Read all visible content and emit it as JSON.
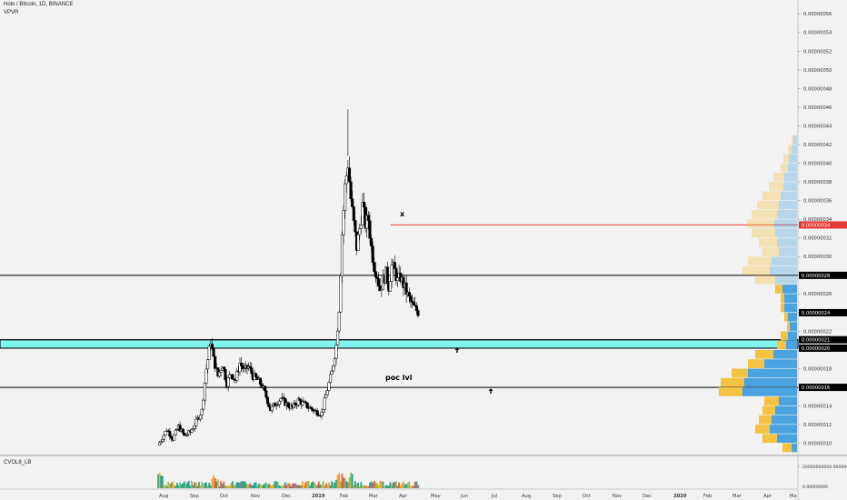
{
  "header": {
    "symbol_title": "Holo / Bitcoin, 1D, BINANCE",
    "indicator_name": "VPVR"
  },
  "volume_pane": {
    "label": "CVOL8_LB",
    "scale_top": "20000000000.00000000",
    "scale_zero": "0.00000000"
  },
  "annotations": {
    "x_marker": "x",
    "poc_label": "poc lvl"
  },
  "colors": {
    "background": "#f2f2f2",
    "candle_up": "#ffffff",
    "candle_down": "#000000",
    "horizontal_line": "#000000",
    "red_line": "#e53935",
    "zone_fill": "#7ff5ee",
    "vpvr_up": "#f5c242",
    "vpvr_down": "#4aa3e0",
    "vol_up": "#26a69a",
    "vol_down": "#ef5350"
  },
  "chart_data": {
    "type": "candlestick",
    "title": "Holo / Bitcoin, 1D, BINANCE",
    "x_axis_labels": [
      "Aug",
      "Sep",
      "Oct",
      "Nov",
      "Dec",
      "2019",
      "Feb",
      "Mar",
      "Apr",
      "May",
      "Jun",
      "Jul",
      "Aug",
      "Sep",
      "Oct",
      "Nov",
      "Dec",
      "2020",
      "Feb",
      "Mar",
      "Apr",
      "Ma"
    ],
    "y_ticks": [
      1e-07,
      1.2e-07,
      1.4e-07,
      1.6e-07,
      1.8e-07,
      2e-07,
      2.2e-07,
      2.4e-07,
      2.6e-07,
      2.8e-07,
      3e-07,
      3.2e-07,
      3.4e-07,
      3.6e-07,
      3.8e-07,
      4e-07,
      4.2e-07,
      4.4e-07,
      4.6e-07,
      4.8e-07,
      5e-07,
      5.2e-07,
      5.4e-07,
      5.6e-07
    ],
    "y_tick_labels": [
      "0.00000010",
      "0.00000012",
      "0.00000014",
      "0.00000016",
      "0.00000018",
      "0.00000020",
      "0.00000022",
      "0.00000024",
      "0.00000026",
      "0.00000028",
      "0.00000030",
      "0.00000032",
      "0.00000034",
      "0.00000036",
      "0.00000038",
      "0.00000040",
      "0.00000042",
      "0.00000044",
      "0.00000046",
      "0.00000048",
      "0.00000050",
      "0.00000052",
      "0.00000054",
      "0.00000056"
    ],
    "ylim": [
      8.8e-08,
      5.75e-07
    ],
    "price_tags": [
      {
        "value": 3.34e-07,
        "label": "0.00000034",
        "style": "red"
      },
      {
        "value": 2.8e-07,
        "label": "0.00000028",
        "style": "dark"
      },
      {
        "value": 2.4e-07,
        "label": "0.00000024",
        "style": "dark"
      },
      {
        "value": 2.11e-07,
        "label": "0.00000021",
        "style": "dark"
      },
      {
        "value": 2.02e-07,
        "label": "0.00000020",
        "style": "dark"
      },
      {
        "value": 1.6e-07,
        "label": "0.00000016",
        "style": "dark"
      }
    ],
    "horizontal_lines": [
      2.8e-07,
      2.11e-07,
      2.02e-07,
      1.6e-07
    ],
    "zone": [
      2.02e-07,
      2.11e-07
    ],
    "red_line": 3.34e-07,
    "close_path": [
      [
        0,
        9.8e-08
      ],
      [
        6,
        1.15e-07
      ],
      [
        10,
        1.05e-07
      ],
      [
        14,
        1.18e-07
      ],
      [
        18,
        1.08e-07
      ],
      [
        22,
        1.12e-07
      ],
      [
        26,
        1.23e-07
      ],
      [
        30,
        1.35e-07
      ],
      [
        33,
        1.8e-07
      ],
      [
        36,
        2.1e-07
      ],
      [
        38,
        1.9e-07
      ],
      [
        41,
        1.72e-07
      ],
      [
        44,
        1.85e-07
      ],
      [
        47,
        1.65e-07
      ],
      [
        50,
        1.75e-07
      ],
      [
        53,
        1.68e-07
      ],
      [
        56,
        1.86e-07
      ],
      [
        59,
        1.78e-07
      ],
      [
        62,
        1.82e-07
      ],
      [
        65,
        1.72e-07
      ],
      [
        68,
        1.68e-07
      ],
      [
        71,
        1.62e-07
      ],
      [
        74,
        1.5e-07
      ],
      [
        77,
        1.36e-07
      ],
      [
        80,
        1.42e-07
      ],
      [
        84,
        1.48e-07
      ],
      [
        88,
        1.42e-07
      ],
      [
        92,
        1.38e-07
      ],
      [
        96,
        1.46e-07
      ],
      [
        100,
        1.42e-07
      ],
      [
        104,
        1.38e-07
      ],
      [
        108,
        1.34e-07
      ],
      [
        112,
        1.32e-07
      ],
      [
        116,
        1.58e-07
      ],
      [
        119,
        1.76e-07
      ],
      [
        122,
        2.05e-07
      ],
      [
        124,
        2.45e-07
      ],
      [
        126,
        3.25e-07
      ],
      [
        128,
        3.75e-07
      ],
      [
        130,
        4e-07
      ],
      [
        132,
        3.62e-07
      ],
      [
        134,
        3.35e-07
      ],
      [
        136,
        3.1e-07
      ],
      [
        138,
        3.3e-07
      ],
      [
        140,
        3.55e-07
      ],
      [
        142,
        3.35e-07
      ],
      [
        144,
        3.4e-07
      ],
      [
        146,
        3.1e-07
      ],
      [
        148,
        2.9e-07
      ],
      [
        150,
        2.8e-07
      ],
      [
        152,
        2.65e-07
      ],
      [
        154,
        2.75e-07
      ],
      [
        156,
        2.82e-07
      ],
      [
        158,
        2.68e-07
      ],
      [
        160,
        2.9e-07
      ],
      [
        162,
        2.85e-07
      ],
      [
        164,
        2.74e-07
      ],
      [
        166,
        2.78e-07
      ],
      [
        168,
        2.7e-07
      ],
      [
        170,
        2.62e-07
      ],
      [
        172,
        2.55e-07
      ],
      [
        174,
        2.48e-07
      ],
      [
        176,
        2.44e-07
      ],
      [
        178,
        2.41e-07
      ]
    ],
    "vpvr_rows": [
      {
        "price": 4.25e-07,
        "up": 2,
        "down": 4
      },
      {
        "price": 4.15e-07,
        "up": 4,
        "down": 6
      },
      {
        "price": 4.05e-07,
        "up": 6,
        "down": 9
      },
      {
        "price": 3.95e-07,
        "up": 8,
        "down": 10
      },
      {
        "price": 3.85e-07,
        "up": 12,
        "down": 14
      },
      {
        "price": 3.75e-07,
        "up": 16,
        "down": 15
      },
      {
        "price": 3.65e-07,
        "up": 20,
        "down": 18
      },
      {
        "price": 3.55e-07,
        "up": 24,
        "down": 20
      },
      {
        "price": 3.45e-07,
        "up": 28,
        "down": 22
      },
      {
        "price": 3.35e-07,
        "up": 30,
        "down": 25
      },
      {
        "price": 3.25e-07,
        "up": 26,
        "down": 24
      },
      {
        "price": 3.15e-07,
        "up": 20,
        "down": 22
      },
      {
        "price": 3.05e-07,
        "up": 18,
        "down": 20
      },
      {
        "price": 2.95e-07,
        "up": 26,
        "down": 28
      },
      {
        "price": 2.85e-07,
        "up": 30,
        "down": 30
      },
      {
        "price": 2.75e-07,
        "up": 22,
        "down": 24
      },
      {
        "price": 2.65e-07,
        "up": 8,
        "down": 16
      },
      {
        "price": 2.55e-07,
        "up": 4,
        "down": 14
      },
      {
        "price": 2.45e-07,
        "up": 4,
        "down": 14
      },
      {
        "price": 2.35e-07,
        "up": 4,
        "down": 10
      },
      {
        "price": 2.25e-07,
        "up": 3,
        "down": 8
      },
      {
        "price": 2.15e-07,
        "up": 8,
        "down": 10
      },
      {
        "price": 2.05e-07,
        "up": 10,
        "down": 12
      },
      {
        "price": 1.95e-07,
        "up": 20,
        "down": 26
      },
      {
        "price": 1.85e-07,
        "up": 18,
        "down": 36
      },
      {
        "price": 1.75e-07,
        "up": 18,
        "down": 54
      },
      {
        "price": 1.65e-07,
        "up": 26,
        "down": 58
      },
      {
        "price": 1.55e-07,
        "up": 26,
        "down": 60
      },
      {
        "price": 1.45e-07,
        "up": 16,
        "down": 20
      },
      {
        "price": 1.35e-07,
        "up": 14,
        "down": 24
      },
      {
        "price": 1.25e-07,
        "up": 14,
        "down": 28
      },
      {
        "price": 1.15e-07,
        "up": 16,
        "down": 30
      },
      {
        "price": 1.05e-07,
        "up": 16,
        "down": 22
      },
      {
        "price": 9.5e-08,
        "up": 10,
        "down": 6
      }
    ]
  }
}
